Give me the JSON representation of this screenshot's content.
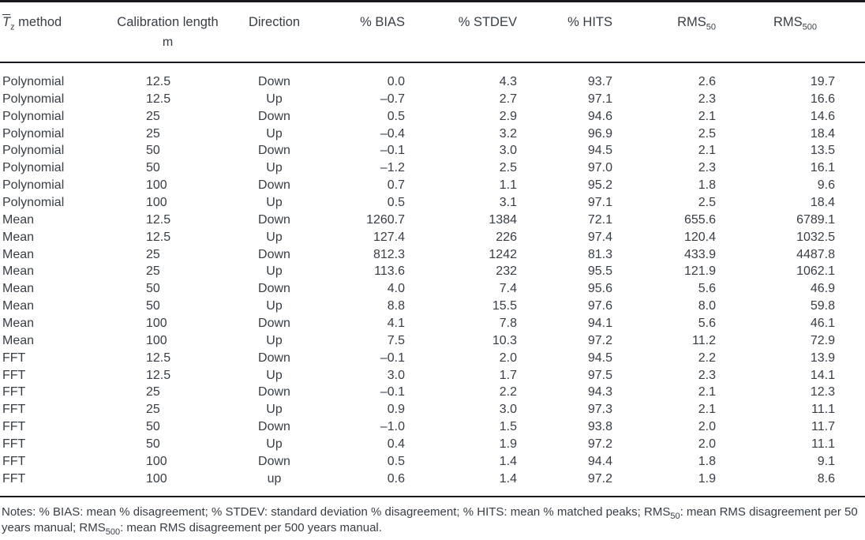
{
  "page": {
    "background": "#ffffff",
    "text_color": "#373e46",
    "rule_color": "#17191c"
  },
  "table": {
    "header": {
      "method_symbol": "T",
      "method_symbol_sub": "z",
      "method_rest": " method",
      "calibration": "Calibration length",
      "calibration_unit": "m",
      "direction": "Direction",
      "bias": "% BIAS",
      "stdev": "% STDEV",
      "hits": "% HITS",
      "rms50_base": "RMS",
      "rms50_sub": "50",
      "rms500_base": "RMS",
      "rms500_sub": "500"
    },
    "rows": [
      {
        "method": "Polynomial",
        "length": "12.5",
        "direction": "Down",
        "bias": "0.0",
        "stdev": "4.3",
        "hits": "93.7",
        "rms50": "2.6",
        "rms500": "19.7"
      },
      {
        "method": "Polynomial",
        "length": "12.5",
        "direction": "Up",
        "bias": "–0.7",
        "stdev": "2.7",
        "hits": "97.1",
        "rms50": "2.3",
        "rms500": "16.6"
      },
      {
        "method": "Polynomial",
        "length": "25",
        "direction": "Down",
        "bias": "0.5",
        "stdev": "2.9",
        "hits": "94.6",
        "rms50": "2.1",
        "rms500": "14.6"
      },
      {
        "method": "Polynomial",
        "length": "25",
        "direction": "Up",
        "bias": "–0.4",
        "stdev": "3.2",
        "hits": "96.9",
        "rms50": "2.5",
        "rms500": "18.4"
      },
      {
        "method": "Polynomial",
        "length": "50",
        "direction": "Down",
        "bias": "–0.1",
        "stdev": "3.0",
        "hits": "94.5",
        "rms50": "2.1",
        "rms500": "13.5"
      },
      {
        "method": "Polynomial",
        "length": "50",
        "direction": "Up",
        "bias": "–1.2",
        "stdev": "2.5",
        "hits": "97.0",
        "rms50": "2.3",
        "rms500": "16.1"
      },
      {
        "method": "Polynomial",
        "length": "100",
        "direction": "Down",
        "bias": "0.7",
        "stdev": "1.1",
        "hits": "95.2",
        "rms50": "1.8",
        "rms500": "9.6"
      },
      {
        "method": "Polynomial",
        "length": "100",
        "direction": "Up",
        "bias": "0.5",
        "stdev": "3.1",
        "hits": "97.1",
        "rms50": "2.5",
        "rms500": "18.4"
      },
      {
        "method": "Mean",
        "length": "12.5",
        "direction": "Down",
        "bias": "1260.7",
        "stdev": "1384",
        "hits": "72.1",
        "rms50": "655.6",
        "rms500": "6789.1"
      },
      {
        "method": "Mean",
        "length": "12.5",
        "direction": "Up",
        "bias": "127.4",
        "stdev": "226",
        "hits": "97.4",
        "rms50": "120.4",
        "rms500": "1032.5"
      },
      {
        "method": "Mean",
        "length": "25",
        "direction": "Down",
        "bias": "812.3",
        "stdev": "1242",
        "hits": "81.3",
        "rms50": "433.9",
        "rms500": "4487.8"
      },
      {
        "method": "Mean",
        "length": "25",
        "direction": "Up",
        "bias": "113.6",
        "stdev": "232",
        "hits": "95.5",
        "rms50": "121.9",
        "rms500": "1062.1"
      },
      {
        "method": "Mean",
        "length": "50",
        "direction": "Down",
        "bias": "4.0",
        "stdev": "7.4",
        "hits": "95.6",
        "rms50": "5.6",
        "rms500": "46.9"
      },
      {
        "method": "Mean",
        "length": "50",
        "direction": "Up",
        "bias": "8.8",
        "stdev": "15.5",
        "hits": "97.6",
        "rms50": "8.0",
        "rms500": "59.8"
      },
      {
        "method": "Mean",
        "length": "100",
        "direction": "Down",
        "bias": "4.1",
        "stdev": "7.8",
        "hits": "94.1",
        "rms50": "5.6",
        "rms500": "46.1"
      },
      {
        "method": "Mean",
        "length": "100",
        "direction": "Up",
        "bias": "7.5",
        "stdev": "10.3",
        "hits": "97.2",
        "rms50": "11.2",
        "rms500": "72.9"
      },
      {
        "method": "FFT",
        "length": "12.5",
        "direction": "Down",
        "bias": "–0.1",
        "stdev": "2.0",
        "hits": "94.5",
        "rms50": "2.2",
        "rms500": "13.9"
      },
      {
        "method": "FFT",
        "length": "12.5",
        "direction": "Up",
        "bias": "3.0",
        "stdev": "1.7",
        "hits": "97.5",
        "rms50": "2.3",
        "rms500": "14.1"
      },
      {
        "method": "FFT",
        "length": "25",
        "direction": "Down",
        "bias": "–0.1",
        "stdev": "2.2",
        "hits": "94.3",
        "rms50": "2.1",
        "rms500": "12.3"
      },
      {
        "method": "FFT",
        "length": "25",
        "direction": "Up",
        "bias": "0.9",
        "stdev": "3.0",
        "hits": "97.3",
        "rms50": "2.1",
        "rms500": "11.1"
      },
      {
        "method": "FFT",
        "length": "50",
        "direction": "Down",
        "bias": "–1.0",
        "stdev": "1.5",
        "hits": "93.8",
        "rms50": "2.0",
        "rms500": "11.7"
      },
      {
        "method": "FFT",
        "length": "50",
        "direction": "Up",
        "bias": "0.4",
        "stdev": "1.9",
        "hits": "97.2",
        "rms50": "2.0",
        "rms500": "11.1"
      },
      {
        "method": "FFT",
        "length": "100",
        "direction": "Down",
        "bias": "0.5",
        "stdev": "1.4",
        "hits": "94.4",
        "rms50": "1.8",
        "rms500": "9.1"
      },
      {
        "method": "FFT",
        "length": "100",
        "direction": "up",
        "bias": "0.6",
        "stdev": "1.4",
        "hits": "97.2",
        "rms50": "1.9",
        "rms500": "8.6"
      }
    ]
  },
  "notes": {
    "part1": "Notes: % BIAS: mean % disagreement; % STDEV: standard deviation % disagreement; % HITS: mean % matched peaks; RMS",
    "sub1": "50",
    "part2": ": mean RMS disagreement per 50 years manual; RMS",
    "sub2": "500",
    "part3": ": mean RMS disagreement per 500 years manual."
  }
}
